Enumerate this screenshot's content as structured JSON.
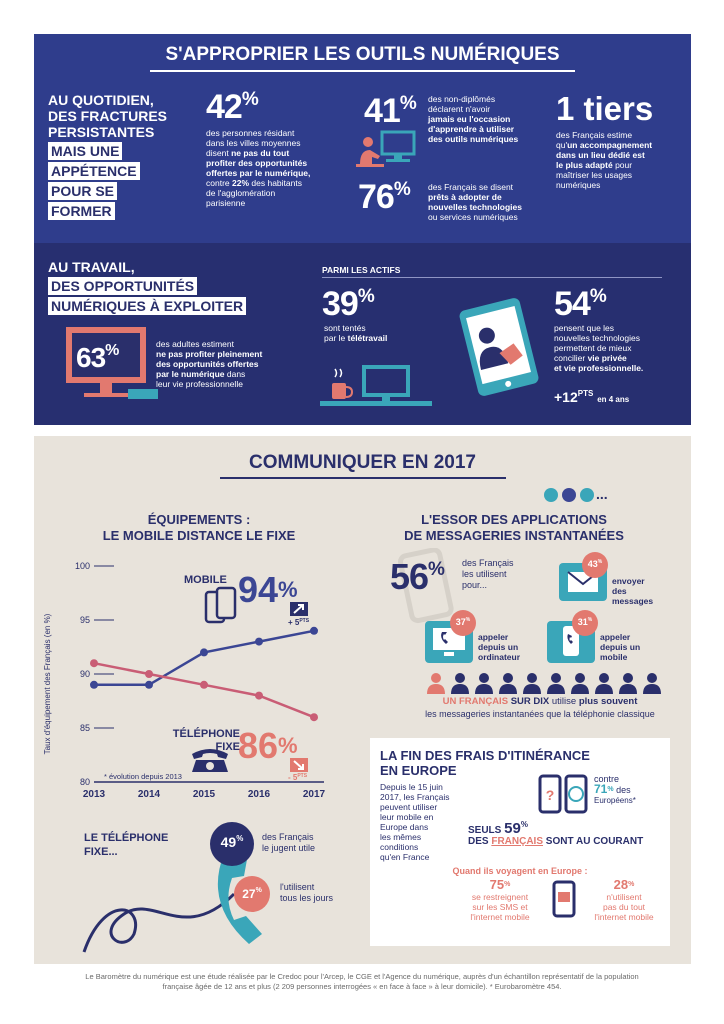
{
  "sec1": {
    "title": "S'APPROPRIER LES OUTILS NUMÉRIQUES",
    "lead_l1": "AU QUOTIDIEN,",
    "lead_l2": "DES FRACTURES",
    "lead_l3": "PERSISTANTES",
    "box_l1": "MAIS UNE",
    "box_l2": "APPÉTENCE",
    "box_l3": "POUR SE",
    "box_l4": "FORMER",
    "s42": {
      "value": "42",
      "unit": "%",
      "t1": "des personnes résidant",
      "t2": "dans les villes moyennes",
      "t3": "disent",
      "t3b": "ne pas du tout",
      "t4": "profiter des opportunités",
      "t5": "offertes par le numérique,",
      "t6a": "contre",
      "t6b": "22",
      "t6c": "%",
      "t6d": "des habitants",
      "t7": "de l'agglomération",
      "t8": "parisienne"
    },
    "s41": {
      "value": "41",
      "unit": "%",
      "t1": "des non-diplômés",
      "t2": "déclarent n'avoir",
      "t3": "jamais eu l'occasion",
      "t4": "d'apprendre à utiliser",
      "t5": "des outils numériques"
    },
    "s76": {
      "value": "76",
      "unit": "%",
      "t1": "des Français se disent",
      "t2": "prêts à adopter de",
      "t3": "nouvelles technologies",
      "t4": "ou services numériques"
    },
    "tiers": {
      "value": "1 tiers",
      "t1": "des Français estime",
      "t2a": "qu'",
      "t2b": "un accompagnement",
      "t3": "dans un lieu dédié est",
      "t4": "le plus adapté",
      "t4b": "pour",
      "t5": "maîtriser les usages",
      "t6": "numériques"
    }
  },
  "sec2": {
    "lead_l1": "AU TRAVAIL,",
    "box_l1": "DES OPPORTUNITÉS",
    "box_l2": "NUMÉRIQUES À EXPLOITER",
    "s63": {
      "value": "63",
      "unit": "%",
      "t1": "des adultes estiment",
      "t2": "ne pas profiter pleinement",
      "t3": "des opportunités offertes",
      "t4": "par le numérique",
      "t4b": "dans",
      "t5": "leur vie professionnelle"
    },
    "parmi": "PARMI LES ACTIFS",
    "s39": {
      "value": "39",
      "unit": "%",
      "t1": "sont tentés",
      "t2": "par le",
      "t2b": "télétravail"
    },
    "s54": {
      "value": "54",
      "unit": "%",
      "t1": "pensent que les",
      "t2": "nouvelles technologies",
      "t3": "permettent de mieux",
      "t4": "concilier",
      "t4b": "vie privée",
      "t5": "et vie professionnelle.",
      "delta": "+12",
      "delta_unit": "PTS",
      "delta_note": "en 4 ans"
    }
  },
  "sec3": {
    "title": "COMMUNIQUER EN 2017",
    "eq_title_l1": "ÉQUIPEMENTS :",
    "eq_title_l2": "LE MOBILE DISTANCE LE FIXE",
    "mobile_label": "MOBILE",
    "mobile_value": "94",
    "mobile_unit": "%",
    "mobile_delta": "+ 5",
    "mobile_delta_unit": "PTS",
    "fixe_label_l1": "TÉLÉPHONE",
    "fixe_label_l2": "FIXE",
    "fixe_value": "86",
    "fixe_unit": "%",
    "fixe_delta": "- 5",
    "fixe_delta_unit": "PTS",
    "evolution_note": "* évolution depuis 2013",
    "fixe_sub_l1": "LE TÉLÉPHONE",
    "fixe_sub_l2": "FIXE...",
    "s49": {
      "value": "49",
      "unit": "%",
      "t1": "des Français",
      "t2": "le jugent utile"
    },
    "s27": {
      "value": "27",
      "unit": "%",
      "t1": "l'utilisent",
      "t2": "tous les jours"
    },
    "apps_title_l1": "L'ESSOR DES APPLICATIONS",
    "apps_title_l2": "DE MESSAGERIES INSTANTANÉES",
    "apps_dots": "...",
    "s56": {
      "value": "56",
      "unit": "%",
      "t1": "des Français",
      "t2": "les utilisent",
      "t3": "pour..."
    },
    "s43": {
      "value": "43",
      "unit": "%",
      "t1": "envoyer",
      "t2": "des",
      "t3": "messages"
    },
    "s37": {
      "value": "37",
      "unit": "%",
      "t1": "appeler",
      "t2": "depuis un",
      "t3": "ordinateur"
    },
    "s31": {
      "value": "31",
      "unit": "%",
      "t1": "appeler",
      "t2": "depuis un",
      "t3": "mobile"
    },
    "un_sur_dix_a": "UN FRANÇAIS",
    "un_sur_dix_b": "SUR DIX",
    "un_sur_dix_c": "utilise",
    "un_sur_dix_d": "plus souvent",
    "un_sur_dix_e": "les messageries instantanées que la téléphonie classique",
    "roam_title_l1": "LA FIN DES FRAIS D'ITINÉRANCE",
    "roam_title_l2": "EN EUROPE",
    "roam_t1": "Depuis le 15 juin",
    "roam_t2": "2017, les Français",
    "roam_t3": "peuvent utiliser",
    "roam_t4": "leur mobile en",
    "roam_t5": "Europe dans",
    "roam_t6": "les mêmes",
    "roam_t7": "conditions",
    "roam_t8": "qu'en France",
    "contre": "contre",
    "s71": "71",
    "s71_unit": "%",
    "s71_t1": "des",
    "s71_t2": "Européens*",
    "seuls": "SEULS",
    "s59": "59",
    "s59_unit": "%",
    "seuls_l2a": "DES",
    "seuls_l2b": "FRANÇAIS",
    "seuls_l2c": "SONT AU COURANT",
    "quand": "Quand ils voyagent en Europe :",
    "s75": {
      "value": "75",
      "unit": "%",
      "t1": "se restreignent",
      "t2": "sur les SMS et",
      "t3": "l'internet mobile"
    },
    "s28": {
      "value": "28",
      "unit": "%",
      "t1": "n'utilisent",
      "t2": "pas du tout",
      "t3": "l'internet mobile"
    }
  },
  "footer": {
    "l1": "Le Baromètre du numérique est une étude réalisée par le Credoc pour l'Arcep, le CGE et l'Agence du numérique, auprès d'un échantillon représentatif de la population",
    "l2": "française âgée de 12 ans et plus (2 209 personnes interrogées « en face à face » à leur domicile). * Eurobaromètre 454."
  },
  "chart_data": {
    "type": "line",
    "x": [
      2013,
      2014,
      2015,
      2016,
      2017
    ],
    "ylabel": "Taux d'équipement des Français (en %)",
    "ylim": [
      80,
      100
    ],
    "yticks": [
      80,
      85,
      90,
      95,
      100
    ],
    "series": [
      {
        "name": "MOBILE",
        "color": "#3b4694",
        "values": [
          89,
          89,
          92,
          93,
          94
        ]
      },
      {
        "name": "TÉLÉPHONE FIXE",
        "color": "#c95d75",
        "values": [
          91,
          90,
          89,
          88,
          86
        ]
      }
    ]
  },
  "colors": {
    "navy": "#2f3d8c",
    "dark_navy": "#272f70",
    "coral": "#e2796f",
    "beige": "#e8e3db",
    "teal": "#3aa6b9"
  }
}
